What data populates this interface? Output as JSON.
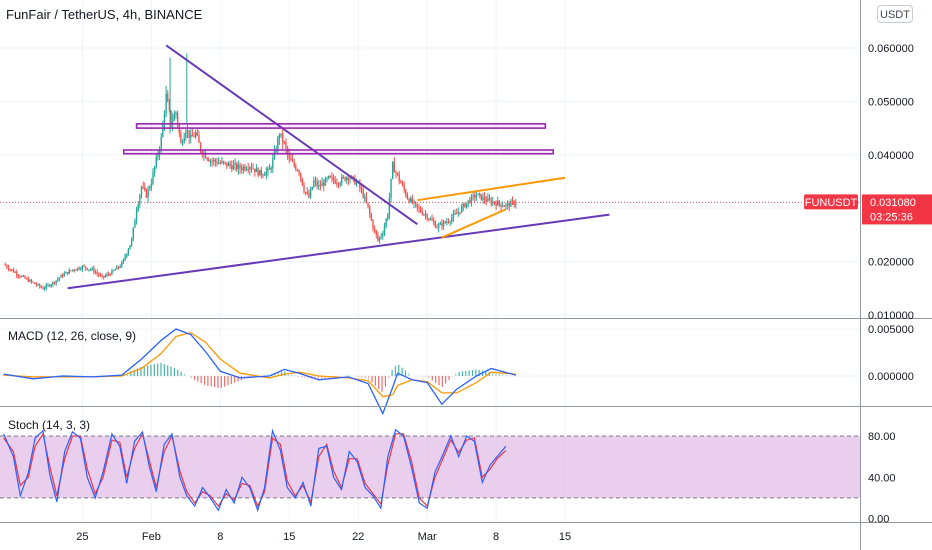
{
  "header": {
    "symbol_title": "FunFair / TetherUS, 4h, BINANCE",
    "currency_button": "USDT"
  },
  "price_badge": {
    "symbol": "FUNUSDT",
    "price": "0.031080",
    "countdown": "03:25:36",
    "color": "#f23645"
  },
  "colors": {
    "up": "#26a69a",
    "down": "#ef5350",
    "trendline": "#673ab7",
    "resistance": "#9c27b0",
    "wedge": "#ff9800",
    "macd_line": "#2962ff",
    "signal_line": "#ff9800",
    "stoch_k": "#2962ff",
    "stoch_d": "#f23645",
    "stoch_band": "#e1bee7"
  },
  "chart_data": [
    {
      "type": "candlestick",
      "title": "FunFair / TetherUS, 4h, BINANCE",
      "x_ticks": [
        "25",
        "Feb",
        "8",
        "15",
        "22",
        "Mar",
        "8",
        "15"
      ],
      "y_ticks": [
        "0.060000",
        "0.050000",
        "0.040000",
        "0.030000",
        "0.020000",
        "0.010000"
      ],
      "ylim": [
        0.0095,
        0.0655
      ],
      "last_price": 0.03108,
      "x_unit": "days from Jan 17",
      "close_path": [
        [
          0,
          0.0195
        ],
        [
          1.5,
          0.0175
        ],
        [
          3,
          0.016
        ],
        [
          4,
          0.015
        ],
        [
          5,
          0.016
        ],
        [
          6,
          0.0175
        ],
        [
          7,
          0.0185
        ],
        [
          8,
          0.019
        ],
        [
          9,
          0.0185
        ],
        [
          10,
          0.017
        ],
        [
          11,
          0.018
        ],
        [
          12,
          0.0195
        ],
        [
          13,
          0.024
        ],
        [
          13.5,
          0.03
        ],
        [
          14,
          0.034
        ],
        [
          14.5,
          0.0325
        ],
        [
          15,
          0.035
        ],
        [
          15.5,
          0.039
        ],
        [
          16,
          0.043
        ],
        [
          16.5,
          0.051
        ],
        [
          17,
          0.046
        ],
        [
          17.5,
          0.048
        ],
        [
          18,
          0.042
        ],
        [
          18.5,
          0.045
        ],
        [
          19,
          0.043
        ],
        [
          19.5,
          0.044
        ],
        [
          20,
          0.041
        ],
        [
          21,
          0.039
        ],
        [
          22,
          0.0385
        ],
        [
          23,
          0.038
        ],
        [
          24,
          0.0375
        ],
        [
          25,
          0.038
        ],
        [
          26,
          0.0365
        ],
        [
          27,
          0.037
        ],
        [
          27.5,
          0.04
        ],
        [
          28,
          0.044
        ],
        [
          28.5,
          0.042
        ],
        [
          29,
          0.039
        ],
        [
          30,
          0.037
        ],
        [
          30.5,
          0.0335
        ],
        [
          31,
          0.032
        ],
        [
          31.5,
          0.035
        ],
        [
          32,
          0.034
        ],
        [
          33,
          0.0355
        ],
        [
          34,
          0.035
        ],
        [
          35,
          0.036
        ],
        [
          36,
          0.0345
        ],
        [
          36.5,
          0.0325
        ],
        [
          37,
          0.03
        ],
        [
          37.5,
          0.0265
        ],
        [
          38,
          0.024
        ],
        [
          38.5,
          0.0255
        ],
        [
          39,
          0.029
        ],
        [
          39.5,
          0.038
        ],
        [
          40,
          0.036
        ],
        [
          40.5,
          0.034
        ],
        [
          41,
          0.032
        ],
        [
          42,
          0.03
        ],
        [
          43,
          0.0285
        ],
        [
          44,
          0.0265
        ],
        [
          45,
          0.0275
        ],
        [
          46,
          0.029
        ],
        [
          47,
          0.031
        ],
        [
          48,
          0.0325
        ],
        [
          49,
          0.0315
        ],
        [
          50,
          0.031
        ],
        [
          51,
          0.0305
        ],
        [
          52,
          0.0311
        ]
      ],
      "annotations": [
        {
          "name": "descending trendline",
          "points": [
            [
              16.5,
              0.0605
            ],
            [
              42,
              0.027
            ]
          ]
        },
        {
          "name": "ascending trendline",
          "points": [
            [
              6.5,
              0.015
            ],
            [
              61.5,
              0.0288
            ]
          ]
        },
        {
          "name": "resistance band 1",
          "range": [
            0.045,
            0.0458
          ],
          "x": [
            13.5,
            55
          ]
        },
        {
          "name": "resistance band 2",
          "range": [
            0.0402,
            0.0409
          ],
          "x": [
            12.2,
            55.8
          ]
        },
        {
          "name": "wedge upper",
          "points": [
            [
              42,
              0.0315
            ],
            [
              57,
              0.0357
            ]
          ]
        },
        {
          "name": "wedge lower",
          "points": [
            [
              44.5,
              0.0245
            ],
            [
              51,
              0.0298
            ]
          ]
        }
      ]
    },
    {
      "type": "line",
      "title": "MACD (12, 26, close, 9)",
      "y_ticks": [
        "0.005000",
        "0.000000"
      ],
      "ylim": [
        -0.0052,
        0.0058
      ],
      "series": [
        {
          "name": "MACD",
          "values": [
            [
              0,
              0.0002
            ],
            [
              3,
              -0.0003
            ],
            [
              6,
              0.0
            ],
            [
              9,
              -0.0001
            ],
            [
              12,
              0.0001
            ],
            [
              14,
              0.0018
            ],
            [
              16,
              0.0038
            ],
            [
              17.5,
              0.005
            ],
            [
              19,
              0.0044
            ],
            [
              20.5,
              0.0026
            ],
            [
              22,
              0.0005
            ],
            [
              24,
              -0.0002
            ],
            [
              27,
              0.0
            ],
            [
              28.5,
              0.0007
            ],
            [
              30,
              0.0003
            ],
            [
              32,
              -0.0004
            ],
            [
              35,
              -0.0001
            ],
            [
              37,
              -0.0008
            ],
            [
              38.5,
              -0.004
            ],
            [
              39.5,
              -0.0012
            ],
            [
              40,
              0.0003
            ],
            [
              41.5,
              -0.0004
            ],
            [
              43,
              -0.0007
            ],
            [
              44.5,
              -0.003
            ],
            [
              46,
              -0.0014
            ],
            [
              48,
              0.0
            ],
            [
              49.5,
              0.0008
            ],
            [
              52,
              0.0001
            ]
          ]
        },
        {
          "name": "signal",
          "values": [
            [
              0,
              0.0001
            ],
            [
              3,
              -0.0001
            ],
            [
              6,
              -0.0001
            ],
            [
              9,
              -0.0001
            ],
            [
              12,
              0.0
            ],
            [
              14,
              0.0008
            ],
            [
              16,
              0.0024
            ],
            [
              17.5,
              0.0042
            ],
            [
              19,
              0.0046
            ],
            [
              20.5,
              0.0036
            ],
            [
              22,
              0.0018
            ],
            [
              24,
              0.0003
            ],
            [
              27,
              -0.0002
            ],
            [
              28.5,
              0.0002
            ],
            [
              30,
              0.0004
            ],
            [
              32,
              0.0
            ],
            [
              35,
              -0.0002
            ],
            [
              37,
              -0.0005
            ],
            [
              38.5,
              -0.0022
            ],
            [
              39.5,
              -0.002
            ],
            [
              40,
              -0.001
            ],
            [
              41.5,
              -0.0004
            ],
            [
              43,
              -0.0006
            ],
            [
              44.5,
              -0.0018
            ],
            [
              46,
              -0.0018
            ],
            [
              48,
              -0.0007
            ],
            [
              49.5,
              0.0004
            ],
            [
              52,
              0.0002
            ]
          ]
        }
      ]
    },
    {
      "type": "line",
      "title": "Stoch (14, 3, 3)",
      "y_ticks": [
        "80.00",
        "40.00",
        "0.00"
      ],
      "ylim": [
        -4,
        100
      ],
      "band": [
        20,
        80
      ],
      "series": [
        {
          "name": "%K",
          "values": [
            [
              0,
              82
            ],
            [
              1,
              60
            ],
            [
              1.7,
              22
            ],
            [
              2.5,
              44
            ],
            [
              3.2,
              78
            ],
            [
              4,
              85
            ],
            [
              4.7,
              42
            ],
            [
              5.4,
              16
            ],
            [
              6.2,
              65
            ],
            [
              7,
              84
            ],
            [
              7.8,
              78
            ],
            [
              8.5,
              40
            ],
            [
              9.3,
              20
            ],
            [
              10.1,
              45
            ],
            [
              11,
              82
            ],
            [
              11.8,
              70
            ],
            [
              12.5,
              34
            ],
            [
              13.3,
              75
            ],
            [
              14.1,
              84
            ],
            [
              14.8,
              50
            ],
            [
              15.5,
              26
            ],
            [
              16.3,
              72
            ],
            [
              17.1,
              82
            ],
            [
              17.9,
              40
            ],
            [
              18.6,
              22
            ],
            [
              19.4,
              12
            ],
            [
              20.2,
              30
            ],
            [
              21,
              20
            ],
            [
              21.8,
              8
            ],
            [
              22.6,
              28
            ],
            [
              23.4,
              15
            ],
            [
              24.2,
              40
            ],
            [
              25,
              30
            ],
            [
              25.8,
              8
            ],
            [
              26.5,
              30
            ],
            [
              27.3,
              85
            ],
            [
              28.1,
              66
            ],
            [
              28.8,
              30
            ],
            [
              29.6,
              20
            ],
            [
              30.4,
              35
            ],
            [
              31.2,
              12
            ],
            [
              32,
              68
            ],
            [
              32.8,
              70
            ],
            [
              33.5,
              40
            ],
            [
              34.3,
              28
            ],
            [
              35.1,
              65
            ],
            [
              35.9,
              55
            ],
            [
              36.7,
              30
            ],
            [
              37.5,
              22
            ],
            [
              38.3,
              10
            ],
            [
              39,
              60
            ],
            [
              39.8,
              86
            ],
            [
              40.6,
              80
            ],
            [
              41.4,
              50
            ],
            [
              42.2,
              15
            ],
            [
              43,
              10
            ],
            [
              43.8,
              45
            ],
            [
              44.6,
              62
            ],
            [
              45.4,
              80
            ],
            [
              46.2,
              60
            ],
            [
              47,
              80
            ],
            [
              47.8,
              75
            ],
            [
              48.6,
              35
            ],
            [
              49.4,
              52
            ],
            [
              50.1,
              60
            ],
            [
              51,
              70
            ]
          ]
        },
        {
          "name": "%D",
          "values": [
            [
              0,
              78
            ],
            [
              1,
              65
            ],
            [
              1.7,
              32
            ],
            [
              2.5,
              40
            ],
            [
              3.2,
              70
            ],
            [
              4,
              82
            ],
            [
              4.7,
              50
            ],
            [
              5.4,
              22
            ],
            [
              6.2,
              58
            ],
            [
              7,
              80
            ],
            [
              7.8,
              80
            ],
            [
              8.5,
              48
            ],
            [
              9.3,
              24
            ],
            [
              10.1,
              40
            ],
            [
              11,
              76
            ],
            [
              11.8,
              74
            ],
            [
              12.5,
              40
            ],
            [
              13.3,
              68
            ],
            [
              14.1,
              82
            ],
            [
              14.8,
              56
            ],
            [
              15.5,
              30
            ],
            [
              16.3,
              65
            ],
            [
              17.1,
              80
            ],
            [
              17.9,
              46
            ],
            [
              18.6,
              26
            ],
            [
              19.4,
              15
            ],
            [
              20.2,
              26
            ],
            [
              21,
              22
            ],
            [
              21.8,
              12
            ],
            [
              22.6,
              24
            ],
            [
              23.4,
              18
            ],
            [
              24.2,
              34
            ],
            [
              25,
              32
            ],
            [
              25.8,
              12
            ],
            [
              26.5,
              26
            ],
            [
              27.3,
              78
            ],
            [
              28.1,
              72
            ],
            [
              28.8,
              36
            ],
            [
              29.6,
              22
            ],
            [
              30.4,
              32
            ],
            [
              31.2,
              16
            ],
            [
              32,
              60
            ],
            [
              32.8,
              72
            ],
            [
              33.5,
              46
            ],
            [
              34.3,
              30
            ],
            [
              35.1,
              58
            ],
            [
              35.9,
              58
            ],
            [
              36.7,
              34
            ],
            [
              37.5,
              24
            ],
            [
              38.3,
              14
            ],
            [
              39,
              52
            ],
            [
              39.8,
              82
            ],
            [
              40.6,
              82
            ],
            [
              41.4,
              56
            ],
            [
              42.2,
              20
            ],
            [
              43,
              12
            ],
            [
              43.8,
              40
            ],
            [
              44.6,
              58
            ],
            [
              45.4,
              76
            ],
            [
              46.2,
              64
            ],
            [
              47,
              76
            ],
            [
              47.8,
              78
            ],
            [
              48.6,
              40
            ],
            [
              49.4,
              48
            ],
            [
              50.1,
              58
            ],
            [
              51,
              66
            ]
          ]
        }
      ]
    }
  ],
  "indicators": {
    "macd_label": "MACD (12, 26, close, 9)",
    "stoch_label": "Stoch (14, 3, 3)"
  }
}
